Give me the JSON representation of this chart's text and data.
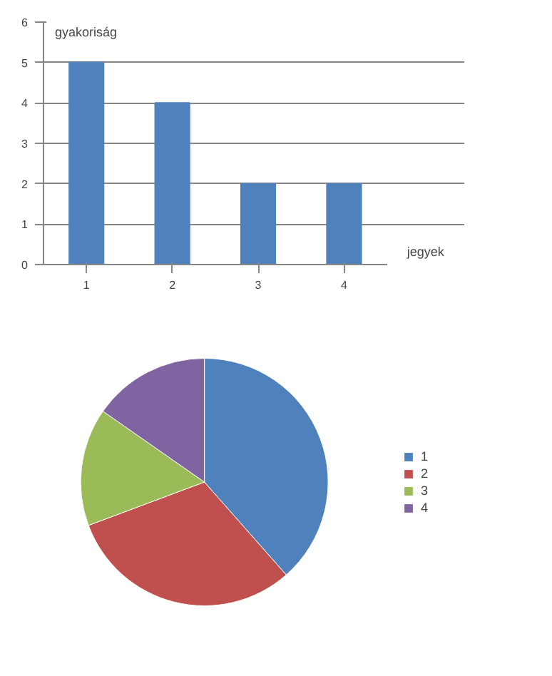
{
  "chart_data": [
    {
      "type": "bar",
      "ylabel": "gyakoriság",
      "xlabel": "jegyek",
      "categories": [
        "1",
        "2",
        "3",
        "4"
      ],
      "values": [
        5,
        4,
        2,
        2
      ],
      "color": "#4f81bd",
      "ylim": [
        0,
        6
      ],
      "yticks": [
        0,
        1,
        2,
        3,
        4,
        5,
        6
      ],
      "grid": "y"
    },
    {
      "type": "pie",
      "categories": [
        "1",
        "2",
        "3",
        "4"
      ],
      "values": [
        38.5,
        30.8,
        15.4,
        15.3
      ],
      "colors": [
        "#4f81bd",
        "#c0504d",
        "#9bbb59",
        "#8064a2"
      ],
      "legend": "right"
    }
  ]
}
